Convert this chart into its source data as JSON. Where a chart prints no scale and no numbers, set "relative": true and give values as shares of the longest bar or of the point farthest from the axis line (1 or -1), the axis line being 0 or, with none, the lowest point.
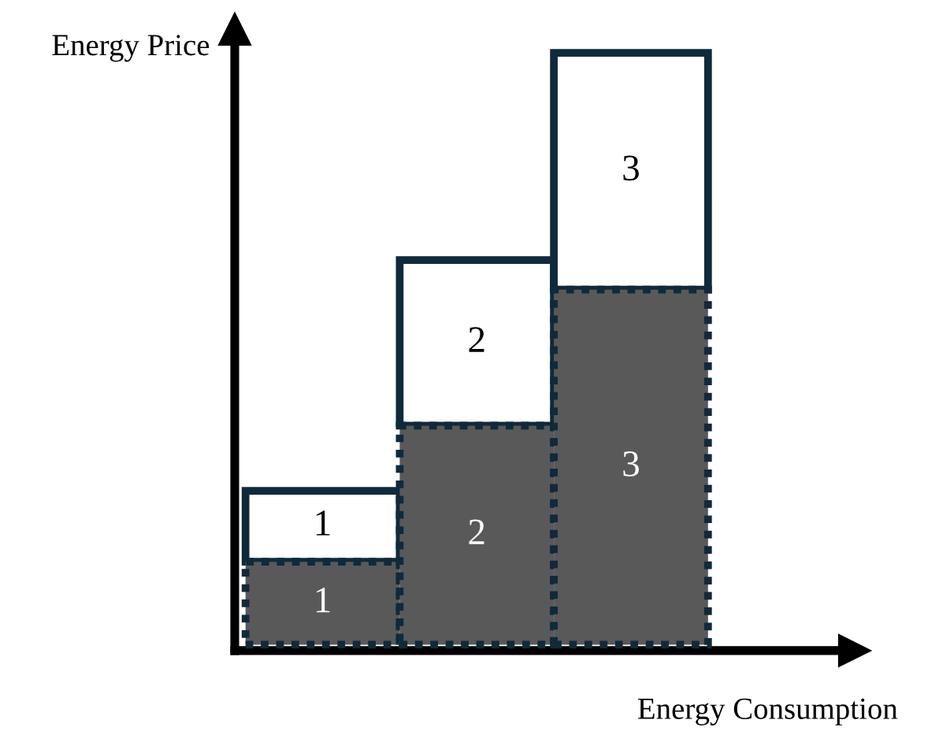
{
  "chart_data": {
    "type": "bar",
    "stacked": true,
    "relative": true,
    "xlabel": "Energy Consumption",
    "ylabel": "Energy Price",
    "categories": [
      null,
      null,
      null
    ],
    "series": [
      {
        "color": "#595959",
        "line_style": "dotted",
        "values": [
          0.14,
          0.37,
          0.6
        ]
      },
      {
        "color": "#ffffff",
        "line_style": "solid",
        "values": [
          0.12,
          0.28,
          0.4
        ]
      }
    ],
    "annotations": [
      "1",
      "1",
      "2",
      "2",
      "3",
      "3"
    ],
    "legend": false,
    "grid": false
  }
}
